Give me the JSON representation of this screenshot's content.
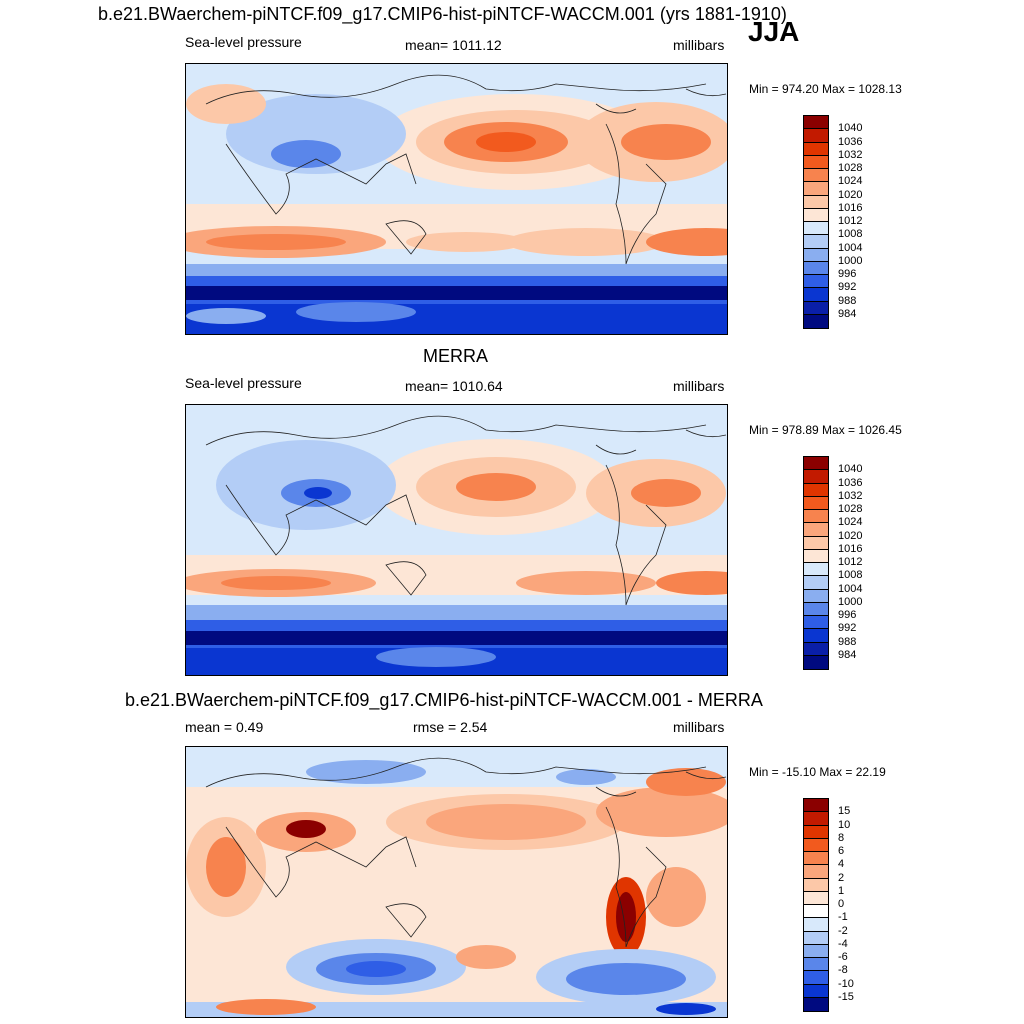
{
  "header": {
    "main_title": "b.e21.BWaerchem-piNTCF.f09_g17.CMIP6-hist-piNTCF-WACCM.001 (yrs 1881-1910)",
    "season": "JJA"
  },
  "panels": [
    {
      "title": "",
      "left_label": "Sea-level pressure",
      "center_label": "mean= 1011.12",
      "right_label": "millibars",
      "minmax": "Min = 974.20 Max = 1028.13"
    },
    {
      "title": "MERRA",
      "left_label": "Sea-level pressure",
      "center_label": "mean= 1010.64",
      "right_label": "millibars",
      "minmax": "Min = 978.89 Max = 1026.45"
    },
    {
      "title": "b.e21.BWaerchem-piNTCF.f09_g17.CMIP6-hist-piNTCF-WACCM.001 - MERRA",
      "left_label": "mean =   0.49",
      "center_label": "rmse =   2.54",
      "right_label": "millibars",
      "minmax": "Min = -15.10 Max =  22.19"
    }
  ],
  "colorbars": {
    "slp": {
      "labels": [
        "1040",
        "1036",
        "1032",
        "1028",
        "1024",
        "1020",
        "1016",
        "1012",
        "1008",
        "1004",
        "1000",
        "996",
        "992",
        "988",
        "984"
      ],
      "colors": [
        "#8b0000",
        "#c21a00",
        "#e03500",
        "#f25a1e",
        "#f7834e",
        "#faa67c",
        "#fcc8a8",
        "#fde6d6",
        "#d8e9fb",
        "#b3cdf6",
        "#8aaef0",
        "#5a86ea",
        "#2f5ee6",
        "#0a36d1",
        "#0a1fa8",
        "#000a80"
      ]
    },
    "diff": {
      "labels": [
        "15",
        "10",
        "8",
        "6",
        "4",
        "2",
        "1",
        "0",
        "-1",
        "-2",
        "-4",
        "-6",
        "-8",
        "-10",
        "-15"
      ],
      "colors": [
        "#8b0000",
        "#c21a00",
        "#e03500",
        "#f25a1e",
        "#f7834e",
        "#faa67c",
        "#fcc8a8",
        "#fde6d6",
        "#ffffff",
        "#d8e9fb",
        "#b3cdf6",
        "#8aaef0",
        "#5a86ea",
        "#2f5ee6",
        "#0a36d1",
        "#000a80"
      ]
    }
  },
  "chart_data": [
    {
      "type": "heatmap",
      "title": "b.e21.BWaerchem-piNTCF.f09_g17.CMIP6-hist-piNTCF-WACCM.001 (yrs 1881-1910)",
      "variable": "Sea-level pressure",
      "units": "millibars",
      "season": "JJA",
      "mean": 1011.12,
      "min": 974.2,
      "max": 1028.13,
      "contour_levels": [
        984,
        988,
        992,
        996,
        1000,
        1004,
        1008,
        1012,
        1016,
        1020,
        1024,
        1028,
        1032,
        1036,
        1040
      ]
    },
    {
      "type": "heatmap",
      "title": "MERRA",
      "variable": "Sea-level pressure",
      "units": "millibars",
      "season": "JJA",
      "mean": 1010.64,
      "min": 978.89,
      "max": 1026.45,
      "contour_levels": [
        984,
        988,
        992,
        996,
        1000,
        1004,
        1008,
        1012,
        1016,
        1020,
        1024,
        1028,
        1032,
        1036,
        1040
      ]
    },
    {
      "type": "heatmap",
      "title": "b.e21.BWaerchem-piNTCF.f09_g17.CMIP6-hist-piNTCF-WACCM.001 - MERRA",
      "units": "millibars",
      "mean": 0.49,
      "rmse": 2.54,
      "min": -15.1,
      "max": 22.19,
      "contour_levels": [
        -15,
        -10,
        -8,
        -6,
        -4,
        -2,
        -1,
        0,
        1,
        2,
        4,
        6,
        8,
        10,
        15
      ]
    }
  ]
}
